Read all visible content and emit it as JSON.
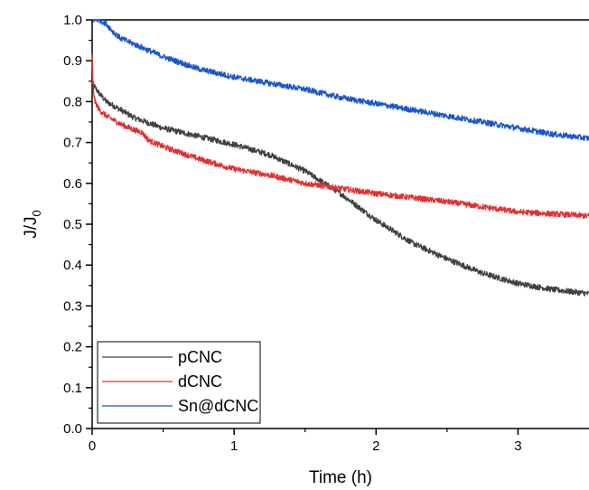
{
  "chart_data": {
    "type": "line",
    "title": "",
    "xlabel": "Time (h)",
    "ylabel_main": "J/J",
    "ylabel_sub": "0",
    "xlim": [
      0,
      3.5
    ],
    "ylim": [
      0,
      1.0
    ],
    "xticks": [
      0,
      1,
      2,
      3
    ],
    "xtick_labels": [
      "0",
      "1",
      "2",
      "3"
    ],
    "yticks": [
      0.0,
      0.1,
      0.2,
      0.3,
      0.4,
      0.5,
      0.6,
      0.7,
      0.8,
      0.9,
      1.0
    ],
    "ytick_labels": [
      "0.0",
      "0.1",
      "0.2",
      "0.3",
      "0.4",
      "0.5",
      "0.6",
      "0.7",
      "0.8",
      "0.9",
      "1.0"
    ],
    "grid": false,
    "legend_position": "bottom-left",
    "series": [
      {
        "name": "pCNC",
        "color": "#404040",
        "x": [
          0,
          0.01,
          0.05,
          0.1,
          0.2,
          0.3,
          0.5,
          0.75,
          1.0,
          1.25,
          1.5,
          1.75,
          2.0,
          2.25,
          2.5,
          2.75,
          3.0,
          3.25,
          3.5
        ],
        "y": [
          0.85,
          0.84,
          0.82,
          0.8,
          0.78,
          0.76,
          0.735,
          0.715,
          0.695,
          0.67,
          0.63,
          0.575,
          0.51,
          0.455,
          0.415,
          0.38,
          0.355,
          0.34,
          0.33
        ]
      },
      {
        "name": "dCNC",
        "color": "#e03030",
        "x": [
          0,
          0.005,
          0.02,
          0.05,
          0.1,
          0.2,
          0.3,
          0.35,
          0.4,
          0.5,
          0.75,
          1.0,
          1.25,
          1.5,
          2.0,
          2.5,
          3.0,
          3.5
        ],
        "y": [
          0.92,
          0.84,
          0.8,
          0.78,
          0.765,
          0.745,
          0.73,
          0.725,
          0.705,
          0.69,
          0.66,
          0.635,
          0.62,
          0.6,
          0.575,
          0.555,
          0.53,
          0.52
        ]
      },
      {
        "name": "Sn@dCNC",
        "color": "#1a56c8",
        "x": [
          0,
          0.05,
          0.1,
          0.15,
          0.2,
          0.3,
          0.5,
          0.75,
          1.0,
          1.25,
          1.5,
          1.75,
          2.0,
          2.25,
          2.5,
          2.75,
          3.0,
          3.25,
          3.5
        ],
        "y": [
          1.0,
          1.0,
          0.99,
          0.97,
          0.955,
          0.94,
          0.91,
          0.88,
          0.86,
          0.845,
          0.83,
          0.81,
          0.795,
          0.78,
          0.765,
          0.75,
          0.735,
          0.72,
          0.71
        ]
      }
    ]
  }
}
